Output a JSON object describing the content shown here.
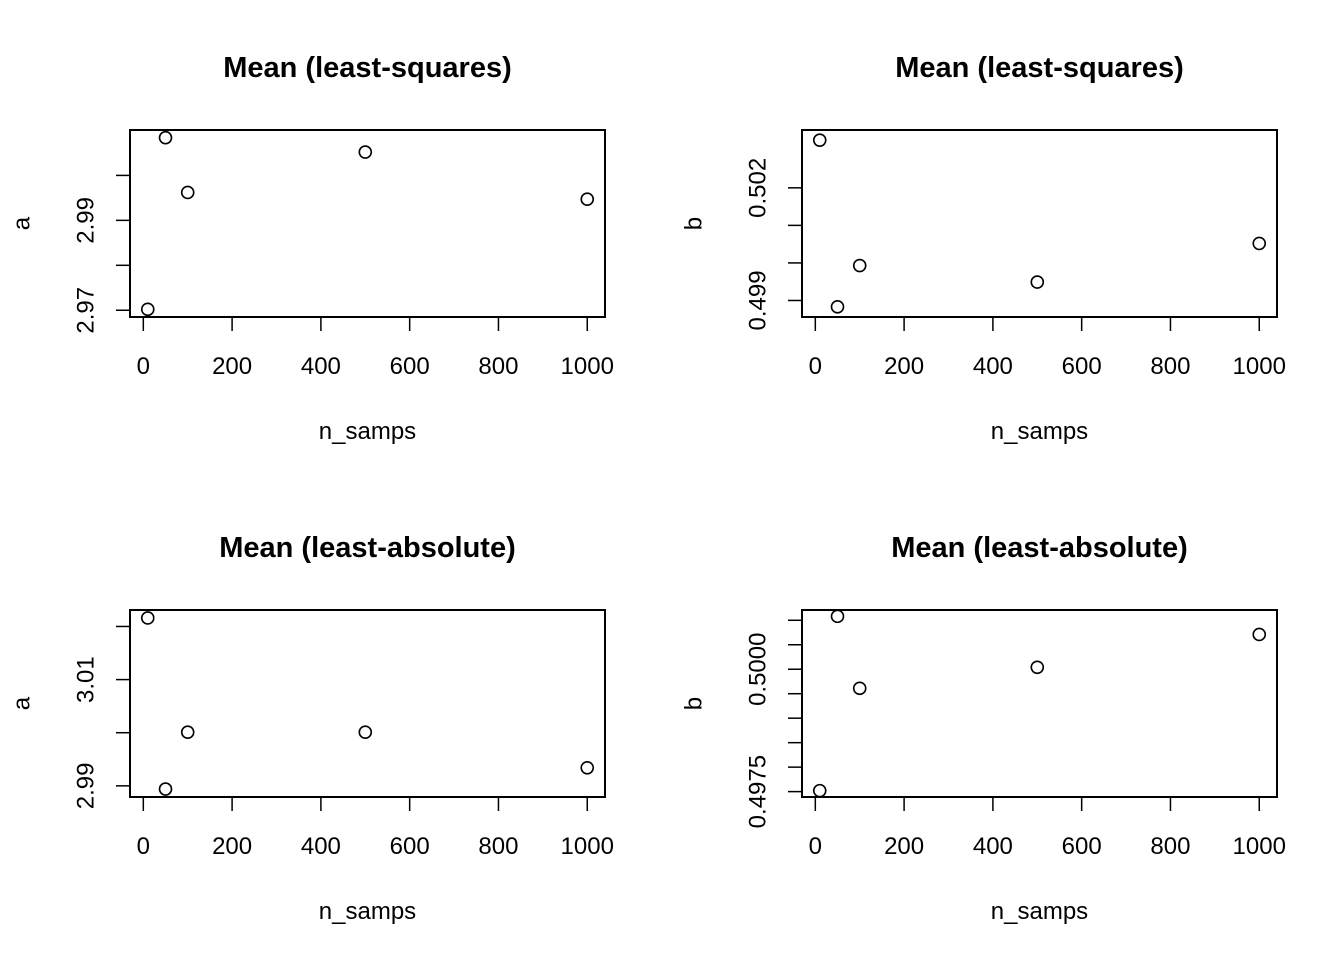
{
  "chart_data": [
    {
      "type": "scatter",
      "title": "Mean (least-squares)",
      "xlabel": "n_samps",
      "ylabel": "a",
      "x": [
        10,
        50,
        100,
        500,
        1000
      ],
      "y": [
        2.9702,
        3.0084,
        2.9962,
        3.0052,
        2.9947
      ],
      "xlim": [
        -30,
        1040
      ],
      "ylim": [
        2.9685,
        3.0101
      ],
      "xticks": [
        0,
        200,
        400,
        600,
        800,
        1000
      ],
      "xtick_labels": [
        "0",
        "200",
        "400",
        "600",
        "800",
        "1000"
      ],
      "yticks": [
        2.97,
        2.98,
        2.99,
        3.0
      ],
      "ytick_labels": [
        "2.97",
        "",
        "2.99",
        ""
      ],
      "grid": false
    },
    {
      "type": "scatter",
      "title": "Mean (least-squares)",
      "xlabel": "n_samps",
      "ylabel": "b",
      "x": [
        10,
        50,
        100,
        500,
        1000
      ],
      "y": [
        0.50327,
        0.49883,
        0.49993,
        0.49949,
        0.50052
      ],
      "xlim": [
        -30,
        1040
      ],
      "ylim": [
        0.49856,
        0.50354
      ],
      "xticks": [
        0,
        200,
        400,
        600,
        800,
        1000
      ],
      "xtick_labels": [
        "0",
        "200",
        "400",
        "600",
        "800",
        "1000"
      ],
      "yticks": [
        0.499,
        0.5,
        0.501,
        0.502
      ],
      "ytick_labels": [
        "0.499",
        "",
        "",
        "0.502"
      ],
      "grid": false
    },
    {
      "type": "scatter",
      "title": "Mean (least-absolute)",
      "xlabel": "n_samps",
      "ylabel": "a",
      "x": [
        10,
        50,
        100,
        500,
        1000
      ],
      "y": [
        3.0216,
        2.9894,
        3.0001,
        3.0001,
        2.9934
      ],
      "xlim": [
        -30,
        1040
      ],
      "ylim": [
        2.9879,
        3.0231
      ],
      "xticks": [
        0,
        200,
        400,
        600,
        800,
        1000
      ],
      "xtick_labels": [
        "0",
        "200",
        "400",
        "600",
        "800",
        "1000"
      ],
      "yticks": [
        2.99,
        3.0,
        3.01,
        3.02
      ],
      "ytick_labels": [
        "2.99",
        "",
        "3.01",
        ""
      ],
      "grid": false
    },
    {
      "type": "scatter",
      "title": "Mean (least-absolute)",
      "xlabel": "n_samps",
      "ylabel": "b",
      "x": [
        10,
        50,
        100,
        500,
        1000
      ],
      "y": [
        0.49752,
        0.50108,
        0.49961,
        0.50004,
        0.50071
      ],
      "xlim": [
        -30,
        1040
      ],
      "ylim": [
        0.49739,
        0.50121
      ],
      "xticks": [
        0,
        200,
        400,
        600,
        800,
        1000
      ],
      "xtick_labels": [
        "0",
        "200",
        "400",
        "600",
        "800",
        "1000"
      ],
      "yticks": [
        0.4975,
        0.498,
        0.4985,
        0.499,
        0.4995,
        0.5,
        0.5005,
        0.501
      ],
      "ytick_labels": [
        "0.4975",
        "",
        "",
        "",
        "",
        "0.5000",
        "",
        ""
      ],
      "grid": false
    }
  ]
}
